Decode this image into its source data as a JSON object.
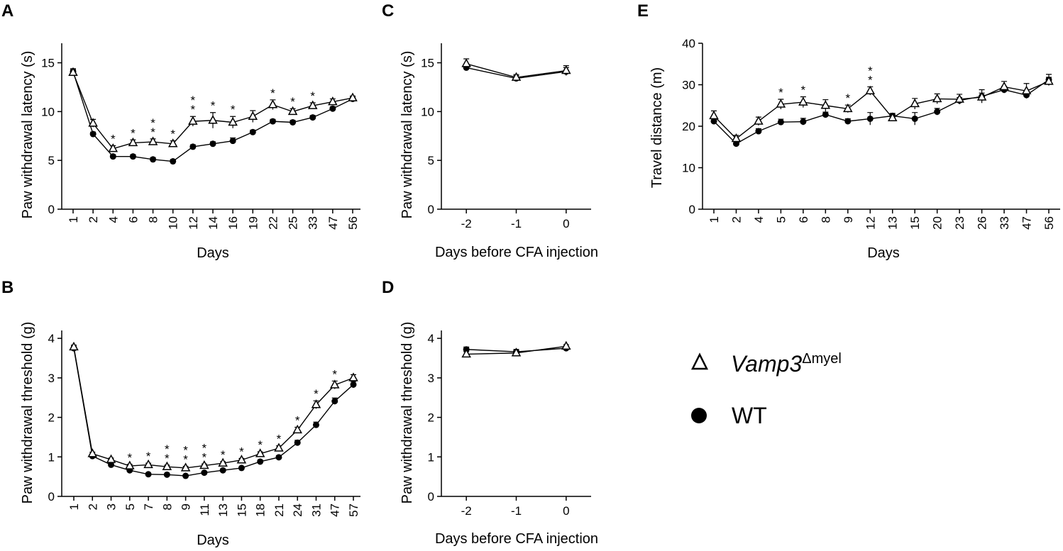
{
  "legend": {
    "vamp_label": "Vamp3",
    "vamp_sup": "Δmyel",
    "wt_label": "WT"
  },
  "chart_data": [
    {
      "panel": "A",
      "type": "line",
      "xlabel": "Days",
      "ylabel": "Paw withdrawal latency (s)",
      "ylim": [
        0,
        17
      ],
      "yticks": [
        0,
        5,
        10,
        15
      ],
      "categories": [
        "1",
        "2",
        "4",
        "6",
        "8",
        "10",
        "12",
        "14",
        "16",
        "19",
        "22",
        "25",
        "33",
        "47",
        "56"
      ],
      "series": [
        {
          "name": "Vamp3Δmyel",
          "marker": "open-triangle",
          "values": [
            14.0,
            8.8,
            6.2,
            6.8,
            6.9,
            6.7,
            9.0,
            9.1,
            8.9,
            9.5,
            10.7,
            10.0,
            10.6,
            11.0,
            11.4
          ],
          "errors": [
            0.3,
            0.4,
            0.3,
            0.3,
            0.3,
            0.3,
            0.5,
            0.8,
            0.6,
            0.6,
            0.5,
            0.3,
            0.3,
            0.3,
            0.2
          ]
        },
        {
          "name": "WT",
          "marker": "filled-circle",
          "values": [
            14.1,
            7.7,
            5.4,
            5.4,
            5.1,
            4.9,
            6.4,
            6.7,
            7.0,
            7.9,
            9.0,
            8.9,
            9.4,
            10.3,
            11.3
          ],
          "errors": [
            0.3,
            0.2,
            0.2,
            0.2,
            0.2,
            0.2,
            0.2,
            0.2,
            0.3,
            0.2,
            0.2,
            0.2,
            0.2,
            0.2,
            0.2
          ]
        }
      ],
      "significance": [
        {
          "category": "4",
          "count": 1
        },
        {
          "category": "6",
          "count": 1
        },
        {
          "category": "8",
          "count": 2
        },
        {
          "category": "10",
          "count": 1
        },
        {
          "category": "12",
          "count": 2
        },
        {
          "category": "14",
          "count": 1
        },
        {
          "category": "16",
          "count": 1
        },
        {
          "category": "22",
          "count": 1
        },
        {
          "category": "25",
          "count": 1
        },
        {
          "category": "33",
          "count": 1
        }
      ]
    },
    {
      "panel": "B",
      "type": "line",
      "xlabel": "Days",
      "ylabel": "Paw withdrawal threshold (g)",
      "ylim": [
        0,
        4.2
      ],
      "yticks": [
        0,
        1,
        2,
        3,
        4
      ],
      "categories": [
        "1",
        "2",
        "3",
        "5",
        "7",
        "8",
        "9",
        "11",
        "13",
        "15",
        "18",
        "21",
        "24",
        "31",
        "47",
        "57"
      ],
      "series": [
        {
          "name": "Vamp3Δmyel",
          "marker": "open-triangle",
          "values": [
            3.78,
            1.08,
            0.93,
            0.77,
            0.8,
            0.75,
            0.72,
            0.78,
            0.84,
            0.92,
            1.08,
            1.22,
            1.68,
            2.32,
            2.82,
            3.0
          ],
          "errors": [
            0.05,
            0.04,
            0.04,
            0.04,
            0.04,
            0.04,
            0.04,
            0.04,
            0.04,
            0.04,
            0.05,
            0.06,
            0.07,
            0.1,
            0.1,
            0.08
          ]
        },
        {
          "name": "WT",
          "marker": "filled-circle",
          "values": [
            3.75,
            1.02,
            0.8,
            0.66,
            0.56,
            0.55,
            0.52,
            0.6,
            0.66,
            0.72,
            0.88,
            0.99,
            1.36,
            1.81,
            2.41,
            2.83
          ],
          "errors": [
            0.05,
            0.04,
            0.03,
            0.03,
            0.03,
            0.03,
            0.03,
            0.03,
            0.03,
            0.03,
            0.04,
            0.04,
            0.06,
            0.07,
            0.08,
            0.08
          ]
        }
      ],
      "significance": [
        {
          "category": "5",
          "count": 1
        },
        {
          "category": "7",
          "count": 1
        },
        {
          "category": "8",
          "count": 2
        },
        {
          "category": "9",
          "count": 2
        },
        {
          "category": "11",
          "count": 2
        },
        {
          "category": "13",
          "count": 1
        },
        {
          "category": "15",
          "count": 1
        },
        {
          "category": "18",
          "count": 1
        },
        {
          "category": "21",
          "count": 1
        },
        {
          "category": "24",
          "count": 1
        },
        {
          "category": "31",
          "count": 1
        },
        {
          "category": "47",
          "count": 1
        }
      ]
    },
    {
      "panel": "C",
      "type": "line",
      "xlabel": "Days before CFA injection",
      "ylabel": "Paw withdrawal latency (s)",
      "ylim": [
        0,
        17
      ],
      "yticks": [
        0,
        5,
        10,
        15
      ],
      "x": [
        -2,
        -1,
        0
      ],
      "xticks": [
        -2,
        -1,
        0
      ],
      "xlim": [
        -2.5,
        0.5
      ],
      "series": [
        {
          "name": "Vamp3Δmyel",
          "marker": "open-triangle",
          "values": [
            14.9,
            13.5,
            14.2
          ],
          "errors": [
            0.5,
            0.3,
            0.5
          ]
        },
        {
          "name": "WT",
          "marker": "filled-circle",
          "values": [
            14.5,
            13.4,
            14.1
          ],
          "errors": [
            0.3,
            0.3,
            0.4
          ]
        }
      ],
      "significance": []
    },
    {
      "panel": "D",
      "type": "line",
      "xlabel": "Days before CFA injection",
      "ylabel": "Paw withdrawal threshold (g)",
      "ylim": [
        0,
        4.2
      ],
      "yticks": [
        0,
        1,
        2,
        3,
        4
      ],
      "x": [
        -2,
        -1,
        0
      ],
      "xticks": [
        -2,
        -1,
        0
      ],
      "xlim": [
        -2.5,
        0.5
      ],
      "series": [
        {
          "name": "Vamp3Δmyel",
          "marker": "open-triangle",
          "values": [
            3.6,
            3.63,
            3.8
          ],
          "errors": [
            0.06,
            0.06,
            0.04
          ]
        },
        {
          "name": "WT",
          "marker": "filled-circle",
          "values": [
            3.72,
            3.66,
            3.75
          ],
          "errors": [
            0.06,
            0.06,
            0.04
          ]
        }
      ],
      "significance": []
    },
    {
      "panel": "E",
      "type": "line",
      "xlabel": "Days",
      "ylabel": "Travel distance (m)",
      "ylim": [
        0,
        40
      ],
      "yticks": [
        0,
        10,
        20,
        30,
        40
      ],
      "categories": [
        "1",
        "2",
        "4",
        "5",
        "6",
        "8",
        "9",
        "12",
        "13",
        "15",
        "20",
        "23",
        "26",
        "33",
        "47",
        "56"
      ],
      "series": [
        {
          "name": "Vamp3Δmyel",
          "marker": "open-triangle",
          "values": [
            22.5,
            17.0,
            21.2,
            25.3,
            25.8,
            25.0,
            24.2,
            28.5,
            22.0,
            25.4,
            26.6,
            26.5,
            27.0,
            29.5,
            28.5,
            30.8
          ],
          "errors": [
            1.2,
            0.8,
            1.0,
            1.2,
            1.3,
            1.4,
            0.9,
            1.0,
            0.8,
            1.3,
            1.2,
            1.2,
            1.0,
            1.3,
            1.8,
            1.0
          ]
        },
        {
          "name": "WT",
          "marker": "filled-circle",
          "values": [
            21.2,
            15.8,
            18.8,
            21.0,
            21.1,
            22.8,
            21.2,
            21.8,
            22.5,
            21.8,
            23.5,
            26.2,
            27.2,
            28.8,
            27.5,
            31.2
          ],
          "errors": [
            0.6,
            0.5,
            0.6,
            0.7,
            0.8,
            0.6,
            0.6,
            1.5,
            0.6,
            1.5,
            0.8,
            0.7,
            1.6,
            0.8,
            0.7,
            1.3
          ]
        }
      ],
      "significance": [
        {
          "category": "5",
          "count": 1
        },
        {
          "category": "6",
          "count": 1
        },
        {
          "category": "9",
          "count": 1
        },
        {
          "category": "12",
          "count": 2
        }
      ]
    }
  ]
}
